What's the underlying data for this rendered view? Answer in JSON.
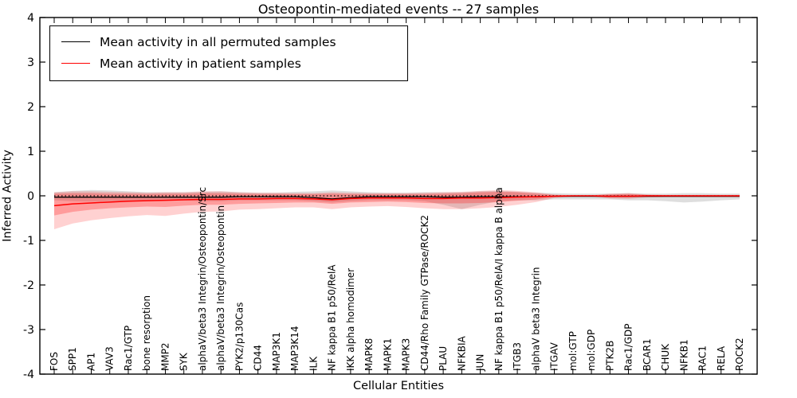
{
  "figure": {
    "title": "Osteopontin-mediated events -- 27 samples",
    "xlabel": "Cellular Entities",
    "ylabel": "Inferred Activity"
  },
  "legend": {
    "items": [
      {
        "label": "Mean activity in all permuted samples",
        "color": "#000000"
      },
      {
        "label": "Mean activity in patient samples",
        "color": "#ff0000"
      }
    ]
  },
  "axes": {
    "y_ticks": [
      4,
      3,
      2,
      1,
      0,
      -1,
      -2,
      -3,
      -4
    ],
    "ylim": [
      -4,
      4
    ]
  },
  "chart_data": {
    "type": "line",
    "title": "Osteopontin-mediated events -- 27 samples",
    "xlabel": "Cellular Entities",
    "ylabel": "Inferred Activity",
    "ylim": [
      -4,
      4
    ],
    "grid": false,
    "legend_position": "upper left",
    "zero_line": {
      "style": "dotted",
      "color": "#000000",
      "y": 0
    },
    "categories": [
      "FOS",
      "SPP1",
      "AP1",
      "VAV3",
      "Rac1/GTP",
      "bone resorption",
      "MMP2",
      "SYK",
      "alphaV/beta3 Integrin/Osteopontin/Src",
      "alphaV/beta3 Integrin/Osteopontin",
      "PYK2/p130Cas",
      "CD44",
      "MAP3K1",
      "MAP3K14",
      "ILK",
      "NF kappa B1 p50/RelA",
      "IKK alpha homodimer",
      "MAPK8",
      "MAPK1",
      "MAPK3",
      "CD44/Rho Family GTPase/ROCK2",
      "PLAU",
      "NFKBIA",
      "JUN",
      "NF kappa B1 p50/RelA/I kappa B alpha",
      "ITGB3",
      "alphaV beta3 Integrin",
      "ITGAV",
      "mol:GTP",
      "mol:GDP",
      "PTK2B",
      "Rac1/GDP",
      "BCAR1",
      "CHUK",
      "NFKB1",
      "RAC1",
      "RELA",
      "ROCK2"
    ],
    "series": [
      {
        "name": "Mean activity in all permuted samples",
        "color": "#000000",
        "band_color": "#000000",
        "band_opacity": 0.13,
        "values": [
          -0.03,
          -0.03,
          -0.03,
          -0.03,
          -0.03,
          -0.03,
          -0.03,
          -0.03,
          -0.03,
          -0.03,
          -0.02,
          -0.02,
          -0.02,
          -0.02,
          -0.04,
          -0.07,
          -0.04,
          -0.02,
          -0.02,
          -0.02,
          -0.02,
          -0.03,
          -0.03,
          -0.02,
          -0.02,
          -0.02,
          -0.02,
          -0.01,
          -0.01,
          -0.01,
          -0.01,
          -0.01,
          -0.01,
          -0.01,
          -0.01,
          -0.01,
          -0.01,
          -0.01
        ],
        "band_upper": [
          0.08,
          0.11,
          0.13,
          0.12,
          0.1,
          0.08,
          0.08,
          0.08,
          0.09,
          0.1,
          0.08,
          0.07,
          0.07,
          0.09,
          0.1,
          0.12,
          0.1,
          0.08,
          0.07,
          0.07,
          0.08,
          0.08,
          0.08,
          0.1,
          0.11,
          0.09,
          0.07,
          0.06,
          0.05,
          0.05,
          0.05,
          0.06,
          0.05,
          0.05,
          0.06,
          0.06,
          0.05,
          0.05
        ],
        "band_lower": [
          -0.1,
          -0.12,
          -0.13,
          -0.12,
          -0.12,
          -0.1,
          -0.1,
          -0.1,
          -0.12,
          -0.12,
          -0.1,
          -0.1,
          -0.1,
          -0.1,
          -0.12,
          -0.15,
          -0.12,
          -0.1,
          -0.1,
          -0.1,
          -0.12,
          -0.2,
          -0.3,
          -0.2,
          -0.12,
          -0.1,
          -0.1,
          -0.08,
          -0.08,
          -0.08,
          -0.08,
          -0.1,
          -0.1,
          -0.12,
          -0.15,
          -0.13,
          -0.1,
          -0.08
        ]
      },
      {
        "name": "Mean activity in patient samples",
        "color": "#ff0000",
        "band_color": "#ff0000",
        "band_opacity": 0.18,
        "values": [
          -0.22,
          -0.18,
          -0.16,
          -0.14,
          -0.12,
          -0.11,
          -0.1,
          -0.09,
          -0.08,
          -0.08,
          -0.07,
          -0.07,
          -0.06,
          -0.06,
          -0.07,
          -0.09,
          -0.06,
          -0.05,
          -0.05,
          -0.05,
          -0.06,
          -0.06,
          -0.05,
          -0.05,
          -0.04,
          -0.03,
          -0.02,
          -0.01,
          0.0,
          0.0,
          -0.01,
          -0.01,
          0.0,
          0.0,
          0.0,
          0.0,
          0.0,
          0.0
        ],
        "band_upper": [
          0.08,
          0.1,
          0.1,
          0.09,
          0.08,
          0.07,
          0.08,
          0.08,
          0.1,
          0.1,
          0.08,
          0.07,
          0.07,
          0.06,
          0.06,
          0.08,
          0.07,
          0.06,
          0.06,
          0.06,
          0.07,
          0.08,
          0.09,
          0.11,
          0.13,
          0.11,
          0.08,
          0.03,
          0.01,
          0.01,
          0.05,
          0.06,
          0.03,
          0.02,
          0.02,
          0.02,
          0.02,
          0.02
        ],
        "band_lower": [
          -0.75,
          -0.62,
          -0.55,
          -0.5,
          -0.46,
          -0.43,
          -0.45,
          -0.4,
          -0.36,
          -0.35,
          -0.31,
          -0.3,
          -0.28,
          -0.26,
          -0.26,
          -0.3,
          -0.26,
          -0.24,
          -0.23,
          -0.25,
          -0.28,
          -0.3,
          -0.3,
          -0.28,
          -0.25,
          -0.2,
          -0.14,
          -0.05,
          -0.02,
          -0.02,
          -0.06,
          -0.07,
          -0.04,
          -0.03,
          -0.03,
          -0.03,
          -0.03,
          -0.03
        ],
        "inner_band_opacity": 0.25,
        "inner_band_upper": [
          0.05,
          0.06,
          0.06,
          0.05,
          0.05,
          0.04,
          0.05,
          0.05,
          0.06,
          0.06,
          0.05,
          0.04,
          0.04,
          0.04,
          0.04,
          0.05,
          0.04,
          0.04,
          0.04,
          0.04,
          0.04,
          0.05,
          0.06,
          0.08,
          0.09,
          0.08,
          0.05,
          0.02,
          0.01,
          0.01,
          0.03,
          0.04,
          0.02,
          0.01,
          0.01,
          0.01,
          0.01,
          0.01
        ],
        "inner_band_lower": [
          -0.44,
          -0.36,
          -0.31,
          -0.28,
          -0.26,
          -0.24,
          -0.25,
          -0.22,
          -0.2,
          -0.2,
          -0.18,
          -0.17,
          -0.16,
          -0.15,
          -0.15,
          -0.18,
          -0.15,
          -0.14,
          -0.13,
          -0.14,
          -0.16,
          -0.17,
          -0.17,
          -0.16,
          -0.14,
          -0.11,
          -0.08,
          -0.03,
          -0.01,
          -0.01,
          -0.04,
          -0.04,
          -0.02,
          -0.02,
          -0.02,
          -0.02,
          -0.02,
          -0.02
        ]
      }
    ]
  }
}
